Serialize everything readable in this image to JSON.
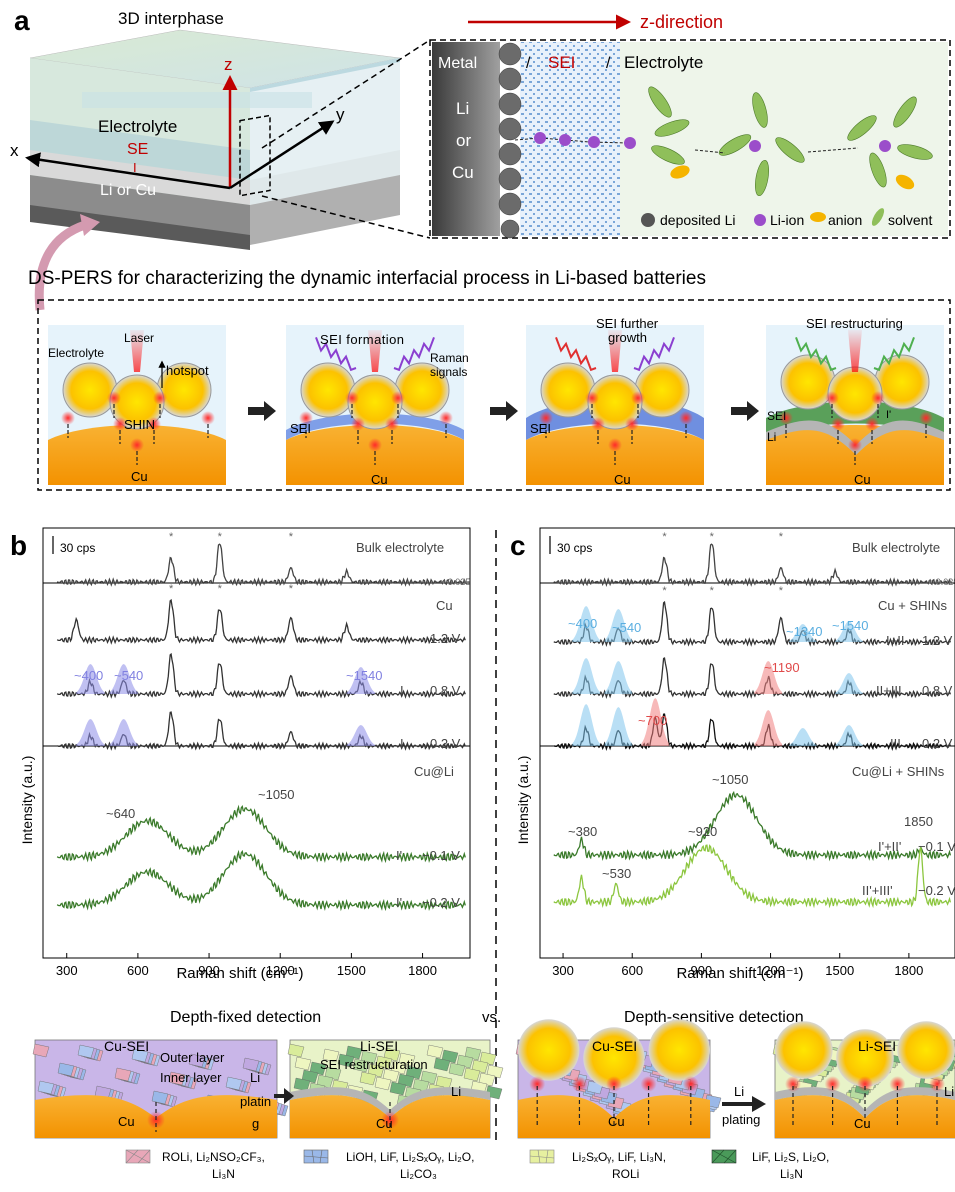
{
  "panel_a": {
    "label": "a",
    "cube_title": "3D interphase",
    "axis_z": "z",
    "axis_x": "x",
    "axis_y": "y",
    "layer_electrolyte": "Electrolyte",
    "layer_se": "SE",
    "layer_i": "I",
    "layer_metal": "Li or Cu",
    "z_direction": "z-direction",
    "inset_metal": "Metal",
    "inset_slash": "/",
    "inset_sei": "SEI",
    "inset_electrolyte": "Electrolyte",
    "inset_li": "Li",
    "inset_or": "or",
    "inset_cu": "Cu",
    "legend_deposited": "deposited Li",
    "legend_liion": "Li-ion",
    "legend_anion": "anion",
    "legend_solvent": "solvent",
    "colors": {
      "sei_red": "#c00000",
      "li_ion": "#9b4dca",
      "anion": "#f5b400",
      "solvent": "#7fb24a"
    }
  },
  "dspers": {
    "title": "DS-PERS for characterizing the dynamic interfacial process in Li-based batteries",
    "step1": {
      "electrolyte": "Electrolyte",
      "laser": "Laser",
      "hotspot": "hotspot",
      "shin": "SHIN",
      "cu": "Cu"
    },
    "step2": {
      "sei_formation": "SEI formation",
      "raman_1": "Raman",
      "raman_2": "signals",
      "sei": "SEI",
      "cu": "Cu"
    },
    "step3": {
      "sei_growth_1": "SEI further",
      "sei_growth_2": "growth",
      "sei": "SEI",
      "cu": "Cu"
    },
    "step4": {
      "sei_restructuring": "SEI restructuring",
      "sei": "SEI",
      "li": "Li",
      "cu": "Cu",
      "i_prime": "I'"
    }
  },
  "panel_b": {
    "label": "b",
    "scale": "30 cps",
    "bulk": "Bulk electrolyte",
    "scale_factor": "× 0.025",
    "cu": "Cu",
    "v1": "1.2 V",
    "v2": "0.8 V",
    "v3": "0.2 V",
    "roman_1": "I",
    "roman_2": "I",
    "peak_400": "~400",
    "peak_540": "~540",
    "peak_1540": "~1540",
    "cu_li": "Cu@Li",
    "peak_640": "~640",
    "peak_1050": "~1050",
    "v4": "−0.1 V",
    "v5": "−0.2 V",
    "roman_3": "I'",
    "roman_4": "I'",
    "star": "*",
    "xlabel": "Raman shift (cm⁻¹)",
    "ylabel": "Intensity (a.u.)",
    "xticks": [
      "300",
      "600",
      "900",
      "1200",
      "1500",
      "1800"
    ]
  },
  "panel_c": {
    "label": "c",
    "scale": "30 cps",
    "bulk": "Bulk electrolyte",
    "scale_factor": "× 0.025",
    "cu": "Cu + SHINs",
    "v1": "1.2 V",
    "v2": "0.8 V",
    "v3": "0.2 V",
    "roman_1": "I+II",
    "roman_2": "II+III",
    "roman_3": "III",
    "peak_400": "~400",
    "peak_540": "~540",
    "peak_1340": "~1340",
    "peak_1540": "~1540",
    "peak_1190": "~1190",
    "peak_700": "~700",
    "cu_li": "Cu@Li + SHINs",
    "peak_1050": "~1050",
    "peak_380": "~380",
    "peak_920": "~920",
    "peak_530": "~530",
    "peak_1850": "1850",
    "v4": "−0.1 V",
    "v5": "−0.2 V",
    "roman_4": "I'+II'",
    "roman_5": "II'+III'",
    "star": "*",
    "xlabel": "Raman shift (cm⁻¹)",
    "ylabel": "Intensity (a.u.)",
    "xticks": [
      "300",
      "600",
      "900",
      "1200",
      "1500",
      "1800"
    ]
  },
  "bottom": {
    "depth_fixed": "Depth-fixed detection",
    "vs": "vs.",
    "depth_sensitive": "Depth-sensitive detection",
    "cu_sei": "Cu-SEI",
    "li_sei": "Li-SEI",
    "outer_layer": "Outer layer",
    "inner_layer": "Inner layer",
    "li_plating_1": "Li",
    "li_plating_2": "platin",
    "li_plating_3": "g",
    "li_plating_b1": "Li",
    "li_plating_b2": "plating",
    "sei_restructuration": "SEI restructuration",
    "li": "Li",
    "cu": "Cu"
  },
  "legend": {
    "item1_a": "ROLi, Li₂NSO₂CF₃,",
    "item1_b": "Li₃N",
    "item2_a": "LiOH, LiF, Li₂SₓOᵧ, Li₂O,",
    "item2_b": "Li₂CO₃",
    "item3_a": "Li₂SₓOᵧ, LiF, Li₃N,",
    "item3_b": "ROLi",
    "item4_a": "LiF, Li₂S, Li₂O,",
    "item4_b": "Li₃N",
    "colors": {
      "item1": "#e8a7b8",
      "item2": "#9ab8e8",
      "item3": "#e6f0a0",
      "item4": "#4a9a5a"
    }
  },
  "chart_data": [
    {
      "type": "line",
      "panel": "b",
      "xlabel": "Raman shift (cm⁻¹)",
      "ylabel": "Intensity (a.u.)",
      "xlim": [
        200,
        2000
      ],
      "series": [
        {
          "name": "Bulk electrolyte",
          "peaks": [
            [
              740,
              0.6
            ],
            [
              945,
              1.0
            ],
            [
              1245,
              0.35
            ],
            [
              1480,
              0.25
            ]
          ]
        },
        {
          "name": "1.2 V",
          "peaks": [
            [
              340,
              0.5
            ],
            [
              740,
              1.0
            ],
            [
              945,
              0.8
            ],
            [
              1245,
              0.55
            ],
            [
              1480,
              0.35
            ]
          ]
        },
        {
          "name": "0.8 V",
          "peaks": [
            [
              400,
              0.3
            ],
            [
              540,
              0.35
            ],
            [
              740,
              1.0
            ],
            [
              945,
              0.8
            ],
            [
              1245,
              0.45
            ],
            [
              1540,
              0.3
            ]
          ]
        },
        {
          "name": "0.2 V",
          "peaks": [
            [
              400,
              0.25
            ],
            [
              540,
              0.3
            ],
            [
              740,
              0.85
            ],
            [
              945,
              0.7
            ],
            [
              1245,
              0.35
            ],
            [
              1540,
              0.25
            ]
          ]
        },
        {
          "name": "−0.1 V",
          "peaks": [
            [
              640,
              0.6
            ],
            [
              1050,
              0.8
            ]
          ]
        },
        {
          "name": "−0.2 V",
          "peaks": [
            [
              640,
              0.55
            ],
            [
              1050,
              0.85
            ]
          ]
        }
      ]
    },
    {
      "type": "line",
      "panel": "c",
      "xlabel": "Raman shift (cm⁻¹)",
      "ylabel": "Intensity (a.u.)",
      "xlim": [
        200,
        2000
      ],
      "series": [
        {
          "name": "Bulk electrolyte",
          "peaks": [
            [
              740,
              0.6
            ],
            [
              945,
              1.0
            ],
            [
              1245,
              0.35
            ],
            [
              1480,
              0.25
            ]
          ]
        },
        {
          "name": "1.2 V",
          "peaks": [
            [
              400,
              0.4
            ],
            [
              540,
              0.35
            ],
            [
              740,
              1.0
            ],
            [
              945,
              0.9
            ],
            [
              1245,
              0.6
            ],
            [
              1340,
              0.3
            ],
            [
              1540,
              0.3
            ]
          ]
        },
        {
          "name": "0.8 V",
          "peaks": [
            [
              400,
              0.4
            ],
            [
              540,
              0.35
            ],
            [
              740,
              0.9
            ],
            [
              945,
              0.8
            ],
            [
              1190,
              0.4
            ],
            [
              1540,
              0.3
            ]
          ]
        },
        {
          "name": "0.2 V",
          "peaks": [
            [
              400,
              0.45
            ],
            [
              540,
              0.4
            ],
            [
              700,
              0.7
            ],
            [
              740,
              0.8
            ],
            [
              945,
              0.7
            ],
            [
              1190,
              0.5
            ],
            [
              1540,
              0.3
            ]
          ]
        },
        {
          "name": "−0.1 V",
          "peaks": [
            [
              380,
              0.25
            ],
            [
              1050,
              1.0
            ],
            [
              1850,
              0.1
            ]
          ]
        },
        {
          "name": "−0.2 V",
          "peaks": [
            [
              380,
              0.4
            ],
            [
              530,
              0.3
            ],
            [
              920,
              0.9
            ],
            [
              1850,
              0.9
            ]
          ]
        }
      ]
    }
  ]
}
